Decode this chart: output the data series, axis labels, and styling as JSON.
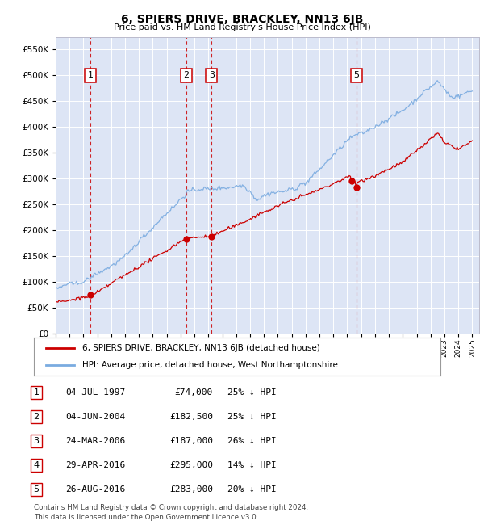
{
  "title": "6, SPIERS DRIVE, BRACKLEY, NN13 6JB",
  "subtitle": "Price paid vs. HM Land Registry's House Price Index (HPI)",
  "sales_dates": [
    1997.504,
    2004.421,
    2006.225,
    2016.329,
    2016.653
  ],
  "sales_prices": [
    74000,
    182500,
    187000,
    295000,
    283000
  ],
  "sale_labels": [
    "1",
    "2",
    "3",
    "5"
  ],
  "sale_label_dates": [
    1997.504,
    2004.421,
    2006.225,
    2016.653
  ],
  "vline_dates": [
    1997.504,
    2004.421,
    2006.225,
    2016.653
  ],
  "table_rows": [
    {
      "num": "1",
      "date": "04-JUL-1997",
      "price": "£74,000",
      "hpi": "25% ↓ HPI"
    },
    {
      "num": "2",
      "date": "04-JUN-2004",
      "price": "£182,500",
      "hpi": "25% ↓ HPI"
    },
    {
      "num": "3",
      "date": "24-MAR-2006",
      "price": "£187,000",
      "hpi": "26% ↓ HPI"
    },
    {
      "num": "4",
      "date": "29-APR-2016",
      "price": "£295,000",
      "hpi": "14% ↓ HPI"
    },
    {
      "num": "5",
      "date": "26-AUG-2016",
      "price": "£283,000",
      "hpi": "20% ↓ HPI"
    }
  ],
  "legend_red": "6, SPIERS DRIVE, BRACKLEY, NN13 6JB (detached house)",
  "legend_blue": "HPI: Average price, detached house, West Northamptonshire",
  "footer": "Contains HM Land Registry data © Crown copyright and database right 2024.\nThis data is licensed under the Open Government Licence v3.0.",
  "ylim": [
    0,
    575000
  ],
  "yticks": [
    0,
    50000,
    100000,
    150000,
    200000,
    250000,
    300000,
    350000,
    400000,
    450000,
    500000,
    550000
  ],
  "bg_color": "#dde5f5",
  "red_color": "#cc0000",
  "blue_color": "#7aabe0",
  "grid_color": "#ffffff"
}
